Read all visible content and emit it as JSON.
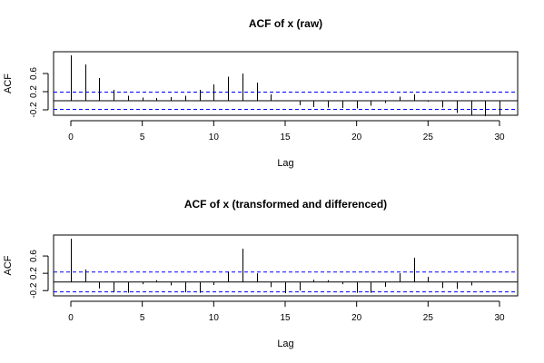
{
  "chart_data": [
    {
      "type": "bar",
      "title": "ACF of x (raw)",
      "xlabel": "Lag",
      "ylabel": "ACF",
      "xlim": [
        0,
        30
      ],
      "ylim": [
        -0.3,
        1.0
      ],
      "x_ticks": [
        0,
        5,
        10,
        15,
        20,
        25,
        30
      ],
      "y_ticks": [
        -0.2,
        0.2,
        0.6
      ],
      "confidence_bound": 0.19,
      "confidence_color": "#0000ff",
      "lags": [
        0,
        1,
        2,
        3,
        4,
        5,
        6,
        7,
        8,
        9,
        10,
        11,
        12,
        13,
        14,
        15,
        16,
        17,
        18,
        19,
        20,
        21,
        22,
        23,
        24,
        25,
        26,
        27,
        28,
        29,
        30
      ],
      "values": [
        1.0,
        0.8,
        0.5,
        0.24,
        0.11,
        0.07,
        0.06,
        0.08,
        0.11,
        0.24,
        0.36,
        0.53,
        0.6,
        0.4,
        0.14,
        -0.01,
        -0.1,
        -0.14,
        -0.15,
        -0.16,
        -0.17,
        -0.11,
        -0.05,
        0.09,
        0.14,
        -0.02,
        -0.15,
        -0.27,
        -0.33,
        -0.34,
        -0.33
      ]
    },
    {
      "type": "bar",
      "title": "ACF of x (transformed and differenced)",
      "xlabel": "Lag",
      "ylabel": "ACF",
      "xlim": [
        0,
        30
      ],
      "ylim": [
        -0.3,
        1.0
      ],
      "x_ticks": [
        0,
        5,
        10,
        15,
        20,
        25,
        30
      ],
      "y_ticks": [
        -0.2,
        0.2,
        0.6
      ],
      "confidence_bound": 0.23,
      "confidence_color": "#0000ff",
      "lags": [
        0,
        1,
        2,
        3,
        4,
        5,
        6,
        7,
        8,
        9,
        10,
        11,
        12,
        13,
        14,
        15,
        16,
        17,
        18,
        19,
        20,
        21,
        22,
        23,
        24,
        25,
        26,
        27,
        28,
        29,
        30
      ],
      "values": [
        1.0,
        0.29,
        -0.15,
        -0.24,
        -0.25,
        -0.05,
        0.04,
        -0.08,
        -0.24,
        -0.25,
        -0.07,
        0.24,
        0.77,
        0.2,
        -0.12,
        -0.26,
        -0.2,
        0.05,
        0.04,
        -0.05,
        -0.25,
        -0.25,
        -0.11,
        0.2,
        0.56,
        0.12,
        -0.14,
        -0.16,
        -0.08,
        -0.01,
        0.0
      ]
    }
  ]
}
